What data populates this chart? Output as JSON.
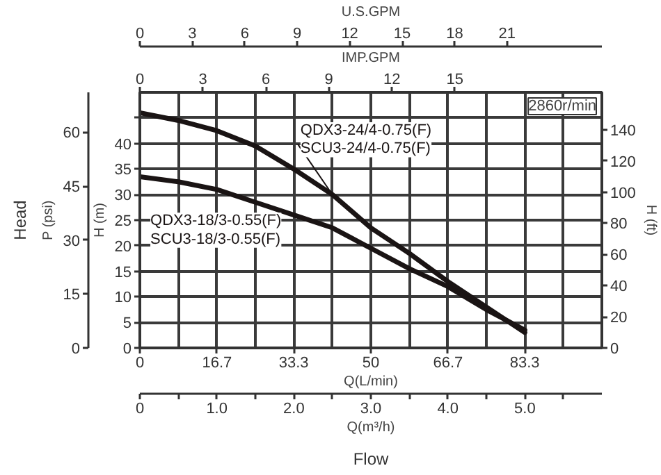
{
  "chart_data": {
    "type": "line",
    "x": [
      0,
      0.5,
      1,
      1.5,
      2,
      2.5,
      3,
      3.5,
      4,
      4.5,
      5
    ],
    "series": [
      {
        "name": "QDX3-24/4-0.75(F)\nSCU3-24/4-0.75(F)",
        "color": "#1a1414",
        "values": [
          46,
          44.5,
          42.5,
          39.5,
          35,
          30,
          23.5,
          18.5,
          13,
          8,
          3
        ]
      },
      {
        "name": "QDX3-18/3-0.55(F)\nSCU3-18/3-0.55(F)",
        "color": "#1a1414",
        "values": [
          33.5,
          32.5,
          31,
          28.5,
          26,
          23.5,
          19.5,
          15.5,
          12,
          7.5,
          3.5
        ]
      }
    ],
    "xlim": [
      0,
      6
    ],
    "xticks": [
      0,
      {
        "value": 0.5,
        "label": null
      },
      {
        "value": 1,
        "label": "1.0"
      },
      {
        "value": 1.5,
        "label": null
      },
      {
        "value": 2,
        "label": "2.0"
      },
      {
        "value": 2.5,
        "label": null
      },
      {
        "value": 3,
        "label": "3.0"
      },
      {
        "value": 3.5,
        "label": null
      },
      {
        "value": 4,
        "label": "4.0"
      },
      {
        "value": 4.5,
        "label": null
      },
      {
        "value": 5,
        "label": "5.0"
      },
      {
        "value": 5.5,
        "label": null
      }
    ],
    "xlabel": "Q(m³/h)",
    "x2lim": [
      0,
      100
    ],
    "x2ticks": [
      0,
      16.7,
      33.3,
      50,
      66.7,
      83.3
    ],
    "x2label": "Q(L/min)",
    "ylim": [
      0,
      50
    ],
    "yticks": [
      0,
      5,
      10,
      15,
      20,
      25,
      30,
      35,
      40,
      {
        "value": 45,
        "label": null
      }
    ],
    "ylabel": "H (m)",
    "y2lim": [
      0,
      164
    ],
    "y2ticks": [
      0,
      20,
      40,
      60,
      80,
      100,
      120,
      140
    ],
    "y2label": "H (ft)",
    "y3lim": [
      0,
      71.1
    ],
    "y3ticks": [
      0,
      15,
      30,
      45,
      60
    ],
    "y3label": "P (psi)",
    "grid": true,
    "legend": false,
    "annotations": [
      "2860r/min",
      "Head",
      "Flow",
      "IMP.GPM",
      "0",
      "3",
      "6",
      "9",
      "12",
      "15",
      "U.S.GPM",
      "0",
      "3",
      "6",
      "9",
      "12",
      "15",
      "18",
      "21"
    ]
  }
}
